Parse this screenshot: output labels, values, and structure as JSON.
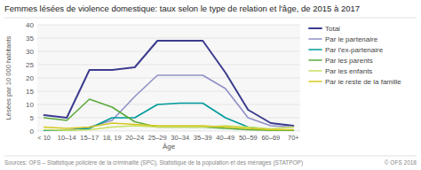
{
  "chart_data": {
    "type": "line",
    "title": "Femmes lésées de violence domestique: taux selon le type de relation et l'âge, de 2015 à 2017",
    "y_label": "Lésées par 10 000 habitants",
    "x_label": "Âge",
    "annotations": [
      "Sources: OFS – Statistique policière de la criminalité (SPC), Statistique de la population et des ménages (STATPOP)",
      "© OFS 2018"
    ],
    "categories": [
      "< 10",
      "10–14",
      "15–17",
      "18, 19",
      "20–24",
      "25–29",
      "30–34",
      "35–39",
      "40–49",
      "50–59",
      "60–69",
      "70+"
    ],
    "series": [
      {
        "name": "Total",
        "color": "#3c3c8f",
        "values": [
          6,
          5,
          23,
          23,
          24,
          34,
          34,
          34,
          22,
          8,
          3,
          2
        ]
      },
      {
        "name": "Par le partenaire",
        "color": "#9090c8",
        "values": [
          0.3,
          0.3,
          1.5,
          4,
          13,
          21,
          21,
          21,
          16,
          5,
          2,
          1.5
        ]
      },
      {
        "name": "Par l'ex-partenaire",
        "color": "#009999",
        "values": [
          0.2,
          0.2,
          1,
          5,
          5,
          10,
          10.5,
          10.5,
          5,
          1.5,
          0.5,
          0.3
        ]
      },
      {
        "name": "Par les parents",
        "color": "#5aaa3c",
        "values": [
          5,
          4,
          12,
          9,
          3.5,
          1.5,
          1.5,
          1.5,
          1,
          0.5,
          0.3,
          0.2
        ]
      },
      {
        "name": "Par les enfants",
        "color": "#c8e060",
        "values": [
          0.5,
          0.3,
          0.5,
          1.5,
          2,
          1.5,
          1.5,
          1.5,
          2,
          1.5,
          0.8,
          1.5
        ]
      },
      {
        "name": "Par le reste de la famille",
        "color": "#d4c820",
        "values": [
          1.5,
          1,
          1.5,
          3,
          2.5,
          2,
          2,
          2,
          1.5,
          1,
          0.5,
          0.5
        ]
      }
    ],
    "ylim": [
      0,
      40
    ],
    "yticks": [
      0,
      5,
      10,
      15,
      20,
      25,
      30,
      35,
      40
    ],
    "grid": true,
    "legend": "right"
  }
}
